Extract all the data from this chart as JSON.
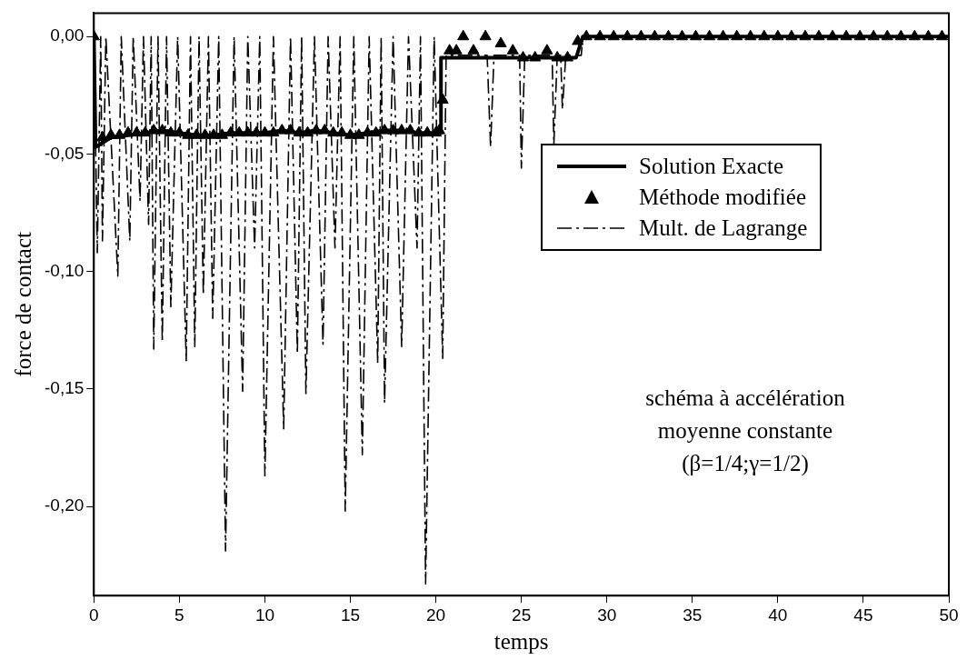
{
  "chart_data": {
    "type": "line",
    "xlabel": "temps",
    "ylabel": "force de contact",
    "xlim": [
      0,
      50
    ],
    "xticks": [
      0,
      5,
      10,
      15,
      20,
      25,
      30,
      35,
      40,
      45,
      50
    ],
    "ylim": [
      -0.238,
      0.01
    ],
    "yticks": [
      {
        "value": 0,
        "label": "0,00"
      },
      {
        "value": -0.05,
        "label": "-0,05"
      },
      {
        "value": -0.1,
        "label": "-0,10"
      },
      {
        "value": -0.15,
        "label": "-0,15"
      },
      {
        "value": -0.2,
        "label": "-0,20"
      }
    ],
    "grid": false,
    "legend": "right",
    "annotations": [
      "schéma à accélération",
      "moyenne constante",
      "(β=1/4;γ=1/2)"
    ],
    "series": [
      {
        "name": "Solution Exacte",
        "type": "line",
        "line_style": "solid",
        "marker": "none",
        "color": "#000000",
        "x": [
          0,
          0.1,
          1,
          2,
          3,
          4,
          5,
          6,
          7,
          8,
          9,
          10,
          11,
          12,
          13,
          14,
          15,
          16,
          17,
          18,
          19,
          20,
          20.3,
          20.3,
          28.2,
          28.6,
          50
        ],
        "values": [
          0,
          -0.047,
          -0.043,
          -0.042,
          -0.041,
          -0.04,
          -0.041,
          -0.042,
          -0.042,
          -0.041,
          -0.041,
          -0.041,
          -0.04,
          -0.041,
          -0.04,
          -0.041,
          -0.042,
          -0.041,
          -0.04,
          -0.04,
          -0.041,
          -0.041,
          -0.041,
          -0.009,
          -0.009,
          0,
          0
        ]
      },
      {
        "name": "Méthode modifiée",
        "type": "scatter",
        "marker": "triangle",
        "color": "#000000",
        "x": [
          0,
          0.5,
          1,
          1.5,
          2,
          2.5,
          3,
          3.5,
          4,
          4.5,
          5,
          5.5,
          6,
          6.5,
          7,
          7.5,
          8,
          8.5,
          9,
          9.5,
          10,
          10.5,
          11,
          11.5,
          12,
          12.5,
          13,
          13.5,
          14,
          14.5,
          15,
          15.5,
          16,
          16.5,
          17,
          17.5,
          18,
          18.5,
          19,
          19.5,
          20,
          20.2,
          20.4,
          20.8,
          21.2,
          21.6,
          22.2,
          22.9,
          23.8,
          24.5,
          25.1,
          25.8,
          26.5,
          27.1,
          27.7,
          28.3,
          28.8,
          29.6,
          30.4,
          31.2,
          32,
          32.8,
          33.6,
          34.4,
          35.2,
          36,
          36.8,
          37.6,
          38.4,
          39.2,
          40,
          40.8,
          41.6,
          42.4,
          43.2,
          44,
          44.8,
          45.6,
          46.4,
          47.2,
          48,
          48.8,
          49.6
        ],
        "values": [
          0,
          -0.043,
          -0.042,
          -0.042,
          -0.041,
          -0.041,
          -0.041,
          -0.04,
          -0.04,
          -0.041,
          -0.041,
          -0.042,
          -0.042,
          -0.042,
          -0.042,
          -0.042,
          -0.041,
          -0.041,
          -0.041,
          -0.041,
          -0.041,
          -0.041,
          -0.04,
          -0.04,
          -0.041,
          -0.041,
          -0.04,
          -0.04,
          -0.041,
          -0.041,
          -0.042,
          -0.042,
          -0.041,
          -0.041,
          -0.04,
          -0.04,
          -0.04,
          -0.04,
          -0.041,
          -0.041,
          -0.041,
          -0.04,
          -0.027,
          -0.006,
          -0.006,
          0,
          -0.006,
          0,
          -0.003,
          -0.006,
          -0.009,
          -0.009,
          -0.006,
          -0.009,
          -0.009,
          -0.002,
          0,
          0,
          0,
          0,
          0,
          0,
          0,
          0,
          0,
          0,
          0,
          0,
          0,
          0,
          0,
          0,
          0,
          0,
          0,
          0,
          0,
          0,
          0,
          0,
          0,
          0,
          0
        ]
      },
      {
        "name": "Mult. de Lagrange",
        "type": "line",
        "line_style": "dashed",
        "marker": "none",
        "color": "#000000",
        "x": [
          0,
          0.2,
          0.4,
          0.5,
          0.7,
          1.4,
          1.6,
          2.1,
          2.3,
          2.7,
          2.9,
          3.2,
          3.35,
          3.5,
          3.75,
          4,
          4.25,
          4.5,
          4.9,
          5.4,
          5.65,
          5.9,
          6.15,
          6.4,
          6.7,
          6.95,
          7.3,
          7.7,
          8.2,
          8.7,
          9,
          9.4,
          9.7,
          10,
          10.5,
          11.1,
          11.5,
          11.9,
          12.15,
          12.4,
          12.9,
          13.4,
          13.7,
          14.1,
          14.4,
          14.7,
          15.2,
          15.7,
          16.1,
          16.6,
          16.8,
          17,
          17.5,
          18,
          18.4,
          18.9,
          19.1,
          19.4,
          19.9,
          20.4,
          20.6,
          23,
          23.2,
          23.4,
          24.9,
          25,
          25.2,
          26.8,
          26.9,
          27.1,
          27.3,
          27.4,
          27.6,
          28.5,
          28.6,
          50
        ],
        "values": [
          0,
          -0.092,
          0,
          -0.087,
          0,
          -0.102,
          0,
          -0.087,
          0,
          -0.07,
          0,
          -0.08,
          0,
          -0.133,
          0,
          -0.13,
          0,
          -0.115,
          0,
          -0.138,
          0,
          -0.132,
          0,
          -0.11,
          0,
          -0.12,
          0,
          -0.219,
          0,
          -0.151,
          0,
          -0.09,
          0,
          -0.187,
          0,
          -0.167,
          0,
          -0.135,
          0,
          -0.152,
          0,
          -0.131,
          0,
          -0.09,
          0,
          -0.202,
          0,
          -0.178,
          0,
          -0.139,
          0,
          -0.156,
          0,
          -0.132,
          0,
          -0.09,
          0,
          -0.233,
          0,
          -0.137,
          -0.008,
          -0.008,
          -0.047,
          -0.008,
          -0.008,
          -0.056,
          -0.008,
          -0.008,
          -0.046,
          -0.008,
          -0.008,
          -0.031,
          -0.008,
          -0.008,
          0,
          0
        ]
      }
    ]
  }
}
